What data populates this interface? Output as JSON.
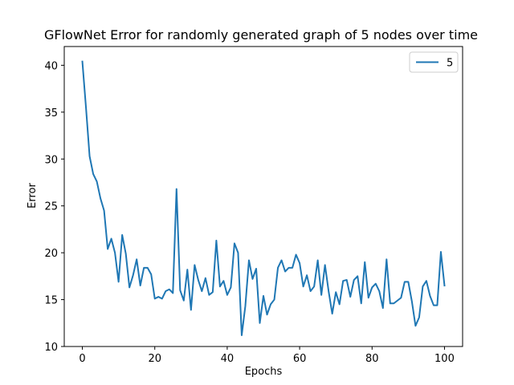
{
  "chart_data": {
    "type": "line",
    "title": "GFlowNet Error for randomly generated graph of 5 nodes over time",
    "xlabel": "Epochs",
    "ylabel": "Error",
    "xlim": [
      -5,
      105
    ],
    "ylim": [
      10,
      42
    ],
    "xticks": [
      0,
      20,
      40,
      60,
      80,
      100
    ],
    "yticks": [
      10,
      15,
      20,
      25,
      30,
      35,
      40
    ],
    "grid": false,
    "legend_placement": "top-right",
    "series": [
      {
        "name": "5",
        "color": "#1f77b4",
        "x": [
          0,
          1,
          2,
          3,
          4,
          5,
          6,
          7,
          8,
          9,
          10,
          11,
          12,
          13,
          14,
          15,
          16,
          17,
          18,
          19,
          20,
          21,
          22,
          23,
          24,
          25,
          26,
          27,
          28,
          29,
          30,
          31,
          32,
          33,
          34,
          35,
          36,
          37,
          38,
          39,
          40,
          41,
          42,
          43,
          44,
          45,
          46,
          47,
          48,
          49,
          50,
          51,
          52,
          53,
          54,
          55,
          56,
          57,
          58,
          59,
          60,
          61,
          62,
          63,
          64,
          65,
          66,
          67,
          68,
          69,
          70,
          71,
          72,
          73,
          74,
          75,
          76,
          77,
          78,
          79,
          80,
          81,
          82,
          83,
          84,
          85,
          86,
          87,
          88,
          89,
          90,
          91,
          92,
          93,
          94,
          95,
          96,
          97,
          98,
          99,
          100
        ],
        "values": [
          40.4,
          35.5,
          30.3,
          28.4,
          27.6,
          25.8,
          24.5,
          20.4,
          21.5,
          20.0,
          16.9,
          21.9,
          19.9,
          16.3,
          17.6,
          19.3,
          16.5,
          18.4,
          18.4,
          17.7,
          15.1,
          15.3,
          15.1,
          15.9,
          16.1,
          15.7,
          26.8,
          16.0,
          14.9,
          18.2,
          13.9,
          18.7,
          17.1,
          15.9,
          17.3,
          15.5,
          15.8,
          21.3,
          16.4,
          17.0,
          15.5,
          16.3,
          21.0,
          20.0,
          11.2,
          14.3,
          19.2,
          17.2,
          18.3,
          12.5,
          15.4,
          13.4,
          14.5,
          15.0,
          18.4,
          19.2,
          18.0,
          18.4,
          18.4,
          19.8,
          18.9,
          16.4,
          17.6,
          15.9,
          16.4,
          19.2,
          15.5,
          18.7,
          15.9,
          13.5,
          15.8,
          14.5,
          17.0,
          17.1,
          15.3,
          17.1,
          17.5,
          14.6,
          19.0,
          15.2,
          16.3,
          16.7,
          15.9,
          14.1,
          19.3,
          14.6,
          14.6,
          14.9,
          15.2,
          16.9,
          16.9,
          14.8,
          12.2,
          13.1,
          16.4,
          17.0,
          15.4,
          14.4,
          14.4,
          20.1,
          16.5
        ]
      }
    ]
  }
}
